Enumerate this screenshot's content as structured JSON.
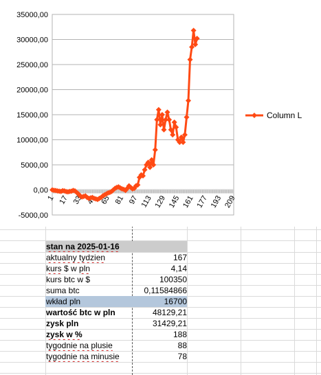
{
  "colors": {
    "series": "#ff4a14",
    "header_bg": "#cccccc",
    "highlight_bg": "#b4c7dc",
    "axis": "#b3b3b3"
  },
  "chart_data": {
    "type": "line",
    "series": [
      {
        "name": "Column L",
        "x": [
          1,
          3,
          5,
          7,
          9,
          11,
          13,
          15,
          17,
          19,
          21,
          23,
          25,
          27,
          29,
          31,
          33,
          35,
          37,
          39,
          41,
          43,
          45,
          47,
          49,
          51,
          53,
          55,
          57,
          59,
          61,
          63,
          65,
          67,
          69,
          71,
          73,
          75,
          77,
          79,
          81,
          83,
          85,
          87,
          89,
          91,
          93,
          95,
          97,
          99,
          101,
          103,
          105,
          107,
          109,
          111,
          113,
          115,
          117,
          119,
          121,
          123,
          125,
          127,
          129,
          131,
          133,
          135,
          137,
          139,
          141,
          143,
          145,
          147,
          149,
          151,
          153,
          155,
          157,
          159,
          161,
          163,
          165,
          167
        ],
        "y": [
          0,
          -80,
          -120,
          -200,
          -250,
          -300,
          -150,
          -200,
          -350,
          -400,
          -300,
          -250,
          -100,
          -200,
          -500,
          -800,
          -1200,
          -1400,
          -1300,
          -1200,
          -1500,
          -1700,
          -1600,
          -1500,
          -1700,
          -1800,
          -1900,
          -1700,
          -1500,
          -1200,
          -1000,
          -800,
          -600,
          -500,
          -300,
          0,
          300,
          500,
          600,
          400,
          200,
          100,
          -100,
          300,
          800,
          500,
          200,
          300,
          800,
          1000,
          2500,
          3000,
          2800,
          4000,
          5000,
          5500,
          4500,
          6000,
          5000,
          8000,
          14000,
          16000,
          13000,
          15000,
          12000,
          14000,
          15500,
          14000,
          12000,
          11000,
          13500,
          12500,
          10000,
          9500,
          10500,
          9500,
          11000,
          14500,
          17800,
          26000,
          28500,
          31800,
          29000,
          30200
        ]
      }
    ],
    "xlim": [
      1,
      209
    ],
    "xticks": [
      "1",
      "17",
      "33",
      "49",
      "65",
      "81",
      "97",
      "113",
      "129",
      "145",
      "161",
      "177",
      "193",
      "209"
    ],
    "ylim": [
      -5000,
      35000
    ],
    "yticks": [
      "35000,00",
      "30000,00",
      "25000,00",
      "20000,00",
      "15000,00",
      "10000,00",
      "5000,00",
      "0,00",
      "-5000,00"
    ],
    "legend_position": "right",
    "grid": true
  },
  "summary": {
    "title": "stan na 2025-01-16",
    "rows": [
      {
        "label": "aktualny tydzien",
        "value": "167"
      },
      {
        "label": "kurs $ w pln",
        "value": "4,14"
      },
      {
        "label": "kurs btc w $",
        "value": "100350"
      },
      {
        "label": "suma btc",
        "value": "0,11584866"
      },
      {
        "label": "wkład pln",
        "value": "16700"
      },
      {
        "label": "wartość btc w pln",
        "value": "48129,21"
      },
      {
        "label": "zysk pln",
        "value": "31429,21"
      },
      {
        "label": "zysk w %",
        "value": "188"
      },
      {
        "label": "tygodnie na plusie",
        "value": "88"
      },
      {
        "label": "tygodnie na minusie",
        "value": "78"
      }
    ]
  }
}
